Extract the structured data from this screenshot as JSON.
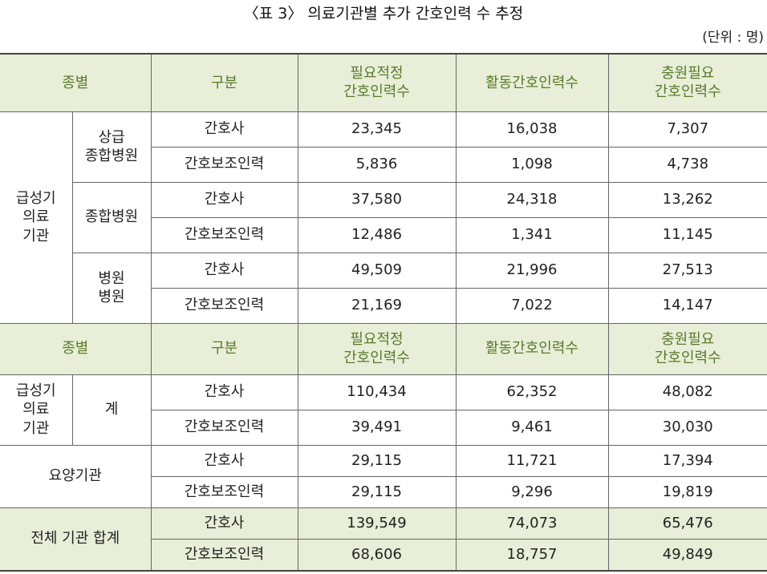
{
  "title": "〈표 3〉 의료기관별 추가 간호인력 수 추정",
  "unit": "(단위 : 명)",
  "header": {
    "col_type": "종별",
    "col_sub": "구분",
    "col_required": "필요적정\n간호인력수",
    "col_active": "활동간호인력수",
    "col_shortage": "충원필요\n간호인력수"
  },
  "labels": {
    "acute": "급성기\n의료\n기관",
    "tertiary": "상급\n종합병원",
    "general": "종합병원",
    "hospital": "병원\n병원",
    "subtotal": "계",
    "longterm": "요양기관",
    "total": "전체 기관 합계",
    "nurse": "간호사",
    "aide": "간호보조인력"
  },
  "rows": {
    "tertiary_nurse": [
      "23,345",
      "16,038",
      "7,307"
    ],
    "tertiary_aide": [
      "5,836",
      "1,098",
      "4,738"
    ],
    "general_nurse": [
      "37,580",
      "24,318",
      "13,262"
    ],
    "general_aide": [
      "12,486",
      "1,341",
      "11,145"
    ],
    "hospital_nurse": [
      "49,509",
      "21,996",
      "27,513"
    ],
    "hospital_aide": [
      "21,169",
      "7,022",
      "14,147"
    ],
    "acute_sum_nurse": [
      "110,434",
      "62,352",
      "48,082"
    ],
    "acute_sum_aide": [
      "39,491",
      "9,461",
      "30,030"
    ],
    "longterm_nurse": [
      "29,115",
      "11,721",
      "17,394"
    ],
    "longterm_aide": [
      "29,115",
      "9,296",
      "19,819"
    ],
    "total_nurse": [
      "139,549",
      "74,073",
      "65,476"
    ],
    "total_aide": [
      "68,606",
      "18,757",
      "49,849"
    ]
  }
}
